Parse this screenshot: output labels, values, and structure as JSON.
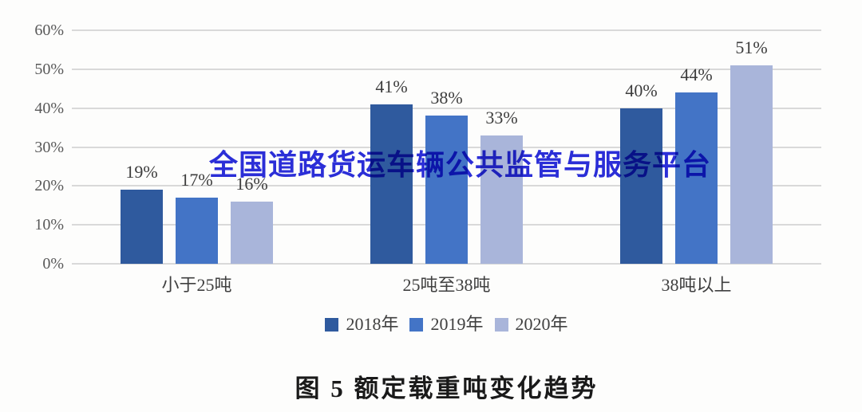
{
  "watermark": {
    "text": "全国道路货运车辆公共监管与服务平台",
    "color": "#2b2eda"
  },
  "caption": {
    "text": "图 5  额定载重吨变化趋势"
  },
  "chart_data": {
    "type": "bar",
    "title": "",
    "xlabel": "",
    "ylabel": "",
    "categories": [
      "小于25吨",
      "25吨至38吨",
      "38吨以上"
    ],
    "series": [
      {
        "name": "2018年",
        "color": "#2f5a9e",
        "values": [
          19,
          41,
          40
        ]
      },
      {
        "name": "2019年",
        "color": "#4374c6",
        "values": [
          17,
          38,
          44
        ]
      },
      {
        "name": "2020年",
        "color": "#a9b5da",
        "values": [
          16,
          33,
          51
        ]
      }
    ],
    "value_suffix": "%",
    "ylim": [
      0,
      60
    ],
    "yticks": [
      0,
      10,
      20,
      30,
      40,
      50,
      60
    ],
    "ytick_suffix": "%",
    "grid": true,
    "gridline_color": "#d9d9d9",
    "legend_position": "bottom"
  }
}
